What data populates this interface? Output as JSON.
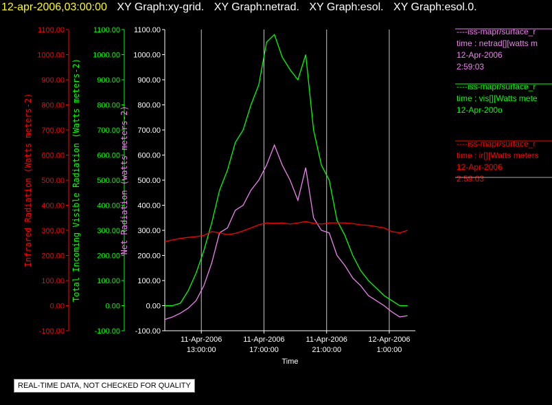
{
  "header": {
    "timestamp": "12-apr-2006,03:00:00",
    "graphs": [
      "XY Graph:xy-grid.",
      "XY Graph:netrad.",
      "XY Graph:esol.",
      "XY Graph:esol.0."
    ]
  },
  "disclaimer": "REAL-TIME DATA, NOT CHECKED FOR QUALITY",
  "colors": {
    "infrared": "#ff0000",
    "visible": "#00ff00",
    "net": "#ee82ee",
    "grid": "#c8c8c8",
    "axis": "#ffffff"
  },
  "chart_data": {
    "type": "line",
    "title": "",
    "xlabel": "Time",
    "x_range": [
      "11-Apr-2006 10:40:00",
      "12-Apr-2006 02:40:00"
    ],
    "x_ticks": [
      {
        "date": "11-Apr-2006",
        "time": "13:00:00"
      },
      {
        "date": "11-Apr-2006",
        "time": "17:00:00"
      },
      {
        "date": "11-Apr-2006",
        "time": "21:00:00"
      },
      {
        "date": "12-Apr-2006",
        "time": "1:00:00"
      }
    ],
    "y_axes": [
      {
        "id": "infrared",
        "label": "Infrared Radiation (Watts meters-2)",
        "range": [
          -100,
          1100
        ]
      },
      {
        "id": "visible",
        "label": "Total Incoming Visible Radiation (Watts meters-2)",
        "range": [
          -100,
          1100
        ]
      },
      {
        "id": "net",
        "label": "Net Radiation (watts meters-2)",
        "range": [
          -100,
          1100
        ]
      }
    ],
    "y_ticks": [
      "-100.00",
      "0.00",
      "100.00",
      "200.00",
      "300.00",
      "400.00",
      "500.00",
      "600.00",
      "700.00",
      "800.00",
      "900.00",
      "1000.00",
      "1100.00"
    ],
    "grid": "vertical",
    "x_hours": [
      0,
      0.5,
      1,
      1.5,
      2,
      2.5,
      3,
      3.5,
      4,
      4.5,
      5,
      5.5,
      6,
      6.5,
      7,
      7.5,
      8,
      8.5,
      9,
      9.5,
      10,
      10.5,
      11,
      11.5,
      12,
      12.5,
      13,
      13.5,
      14,
      14.5,
      15,
      15.5
    ],
    "series": [
      {
        "id": "visible",
        "values": [
          0,
          0,
          10,
          60,
          130,
          220,
          330,
          460,
          540,
          650,
          700,
          800,
          880,
          1050,
          1080,
          990,
          940,
          900,
          1000,
          700,
          560,
          500,
          340,
          280,
          200,
          140,
          100,
          70,
          40,
          20,
          0,
          0
        ]
      },
      {
        "id": "net",
        "values": [
          -55,
          -45,
          -30,
          -10,
          20,
          80,
          170,
          290,
          310,
          380,
          400,
          460,
          500,
          560,
          640,
          560,
          500,
          420,
          550,
          350,
          300,
          290,
          200,
          160,
          110,
          80,
          40,
          20,
          0,
          -25,
          -45,
          -40
        ]
      },
      {
        "id": "infrared",
        "values": [
          255,
          262,
          268,
          272,
          275,
          280,
          295,
          290,
          283,
          288,
          298,
          310,
          322,
          330,
          328,
          330,
          325,
          330,
          335,
          328,
          325,
          330,
          330,
          330,
          327,
          322,
          320,
          315,
          310,
          295,
          290,
          300
        ]
      }
    ],
    "legend": {
      "placement": "right",
      "entries": [
        {
          "series": "net",
          "lines": [
            "----iss-mapr/surface_r",
            "time : netrad[][watts m",
            "12-Apr-2006",
            "2:59:03"
          ]
        },
        {
          "series": "visible",
          "lines": [
            "----iss-mapr/surface_r",
            "time : vis[][Watts mete",
            "12-Apr-200o"
          ]
        },
        {
          "series": "infrared",
          "lines": [
            "----iss-mapr/surface_r",
            "time : ir[][Watts meters",
            "12-Apr-2006",
            "2:59:03"
          ]
        }
      ]
    }
  }
}
